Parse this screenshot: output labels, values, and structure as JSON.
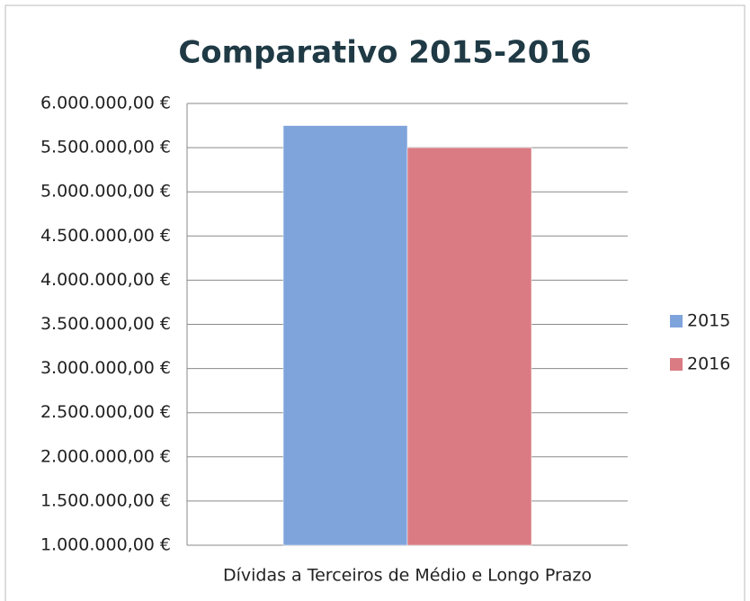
{
  "chart_data": {
    "type": "bar",
    "title": "Comparativo 2015-2016",
    "categories": [
      "Dívidas a Terceiros de Médio e Longo Prazo"
    ],
    "series": [
      {
        "name": "2015",
        "color": "#7fa4dc",
        "values": [
          5750000
        ]
      },
      {
        "name": "2016",
        "color": "#da7b83",
        "values": [
          5500000
        ]
      }
    ],
    "ylim": [
      1000000,
      6000000
    ],
    "yticks": [
      {
        "value": 1000000,
        "label": "1.000.000,00 €"
      },
      {
        "value": 1500000,
        "label": "1.500.000,00 €"
      },
      {
        "value": 2000000,
        "label": "2.000.000,00 €"
      },
      {
        "value": 2500000,
        "label": "2.500.000,00 €"
      },
      {
        "value": 3000000,
        "label": "3.000.000,00 €"
      },
      {
        "value": 3500000,
        "label": "3.500.000,00 €"
      },
      {
        "value": 4000000,
        "label": "4.000.000,00 €"
      },
      {
        "value": 4500000,
        "label": "4.500.000,00 €"
      },
      {
        "value": 5000000,
        "label": "5.000.000,00 €"
      },
      {
        "value": 5500000,
        "label": "5.500.000,00 €"
      },
      {
        "value": 6000000,
        "label": "6.000.000,00 €"
      }
    ],
    "grid": true,
    "legend": "right"
  }
}
